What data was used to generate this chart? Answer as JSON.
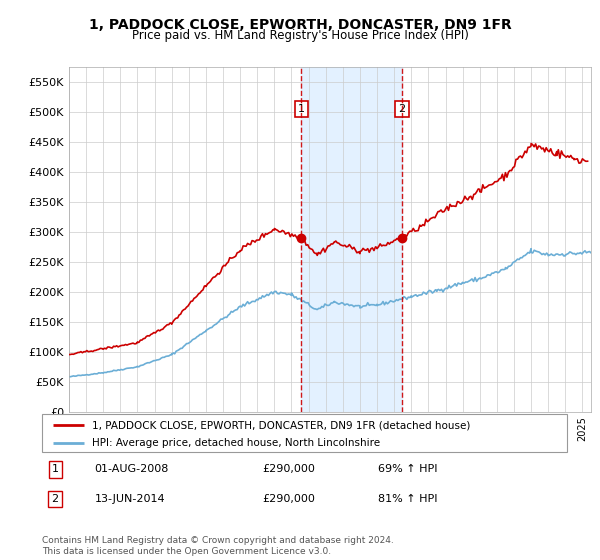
{
  "title": "1, PADDOCK CLOSE, EPWORTH, DONCASTER, DN9 1FR",
  "subtitle": "Price paid vs. HM Land Registry's House Price Index (HPI)",
  "ylabel_ticks": [
    "£0",
    "£50K",
    "£100K",
    "£150K",
    "£200K",
    "£250K",
    "£300K",
    "£350K",
    "£400K",
    "£450K",
    "£500K",
    "£550K"
  ],
  "ytick_values": [
    0,
    50000,
    100000,
    150000,
    200000,
    250000,
    300000,
    350000,
    400000,
    450000,
    500000,
    550000
  ],
  "ylim": [
    0,
    575000
  ],
  "sale1_date": 2008.58,
  "sale1_price": 290000,
  "sale2_date": 2014.44,
  "sale2_price": 290000,
  "legend_line1": "1, PADDOCK CLOSE, EPWORTH, DONCASTER, DN9 1FR (detached house)",
  "legend_line2": "HPI: Average price, detached house, North Lincolnshire",
  "footer": "Contains HM Land Registry data © Crown copyright and database right 2024.\nThis data is licensed under the Open Government Licence v3.0.",
  "hpi_color": "#6baed6",
  "price_color": "#cc0000",
  "shade_color": "#ddeeff",
  "xlim_start": 1995.0,
  "xlim_end": 2025.5
}
